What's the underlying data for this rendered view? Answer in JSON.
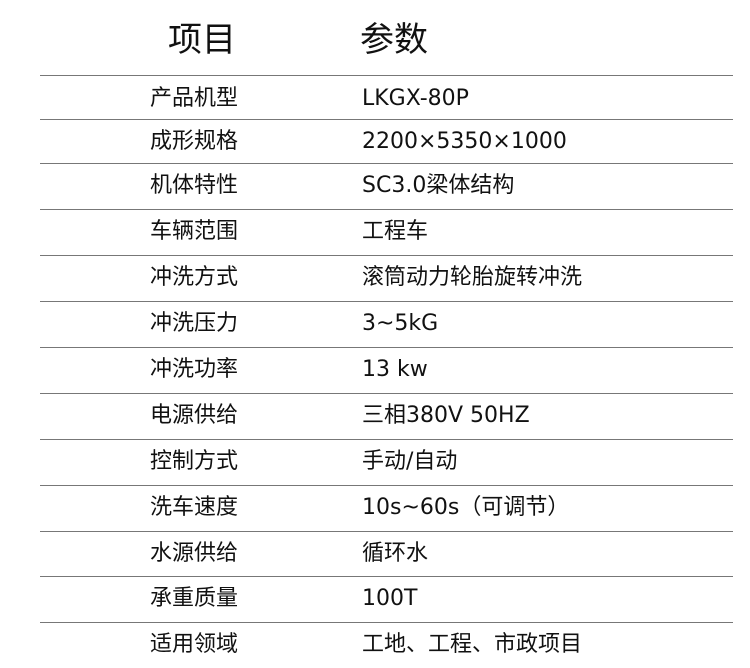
{
  "header": {
    "item": "项目",
    "param": "参数"
  },
  "rows": [
    {
      "label": "产品机型",
      "value": "LKGX-80P"
    },
    {
      "label": "成形规格",
      "value": "2200×5350×1000"
    },
    {
      "label": "机体特性",
      "value": "SC3.0梁体结构"
    },
    {
      "label": "车辆范围",
      "value": "工程车"
    },
    {
      "label": "冲洗方式",
      "value": "滚筒动力轮胎旋转冲洗"
    },
    {
      "label": "冲洗压力",
      "value": "3~5kG"
    },
    {
      "label": "冲洗功率",
      "value": "13 kw"
    },
    {
      "label": "电源供给",
      "value": "三相380V 50HZ"
    },
    {
      "label": "控制方式",
      "value": "手动/自动"
    },
    {
      "label": "洗车速度",
      "value": "10s~60s（可调节）"
    },
    {
      "label": "水源供给",
      "value": "循环水"
    },
    {
      "label": "承重质量",
      "value": "100T"
    },
    {
      "label": "适用领域",
      "value": "工地、工程、市政项目"
    }
  ]
}
